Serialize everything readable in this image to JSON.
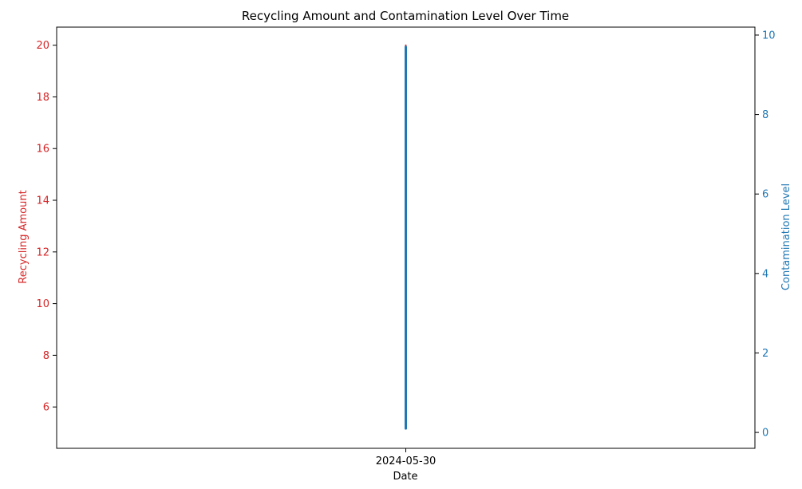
{
  "chart_data": {
    "type": "line",
    "title": "Recycling Amount and Contamination Level Over Time",
    "xlabel": "Date",
    "x_ticks": [
      "2024-05-30"
    ],
    "x": [
      "2024-05-30"
    ],
    "left_axis": {
      "label": "Recycling Amount",
      "color": "#d62728",
      "ylim": [
        4.4,
        20.7
      ],
      "ticks": [
        6,
        8,
        10,
        12,
        14,
        16,
        18,
        20
      ]
    },
    "right_axis": {
      "label": "Contamination Level",
      "color": "#1f77b4",
      "ylim": [
        -0.4,
        10.2
      ],
      "ticks": [
        0,
        2,
        4,
        6,
        8,
        10
      ]
    },
    "series": [
      {
        "axis": "left",
        "color": "#d62728",
        "points": [
          {
            "x": "2024-05-30",
            "y": 5.8
          },
          {
            "x": "2024-05-30",
            "y": 20.0
          }
        ]
      },
      {
        "axis": "right",
        "color": "#1f77b4",
        "points": [
          {
            "x": "2024-05-30",
            "y": 0.1
          },
          {
            "x": "2024-05-30",
            "y": 9.7
          }
        ]
      }
    ],
    "grid": false,
    "legend": "none"
  }
}
